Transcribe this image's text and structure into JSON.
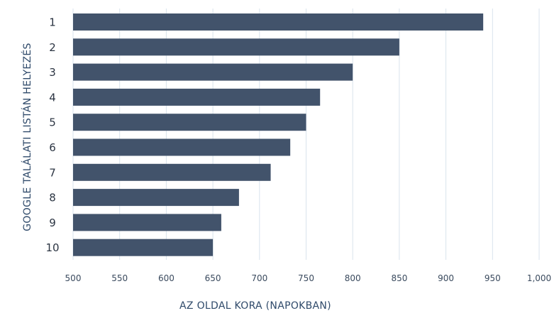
{
  "chart_data": {
    "type": "bar",
    "orientation": "horizontal",
    "title": "",
    "xlabel": "AZ OLDAL KORA (NAPOKBAN)",
    "ylabel": "GOOGLE TALÁLATI LISTÁN HELYEZÉS",
    "categories": [
      "1",
      "2",
      "3",
      "4",
      "5",
      "6",
      "7",
      "8",
      "9",
      "10"
    ],
    "values": [
      940,
      850,
      800,
      765,
      750,
      733,
      712,
      678,
      659,
      650
    ],
    "xlim": [
      500,
      1000
    ],
    "xticks": [
      500,
      550,
      600,
      650,
      700,
      750,
      800,
      850,
      900,
      950,
      1000
    ],
    "xtick_labels": [
      "500",
      "550",
      "600",
      "650",
      "700",
      "750",
      "800",
      "850",
      "900",
      "950",
      "1,000"
    ],
    "grid": true,
    "bar_color": "#42536b",
    "grid_color": "#d9e3ec"
  }
}
